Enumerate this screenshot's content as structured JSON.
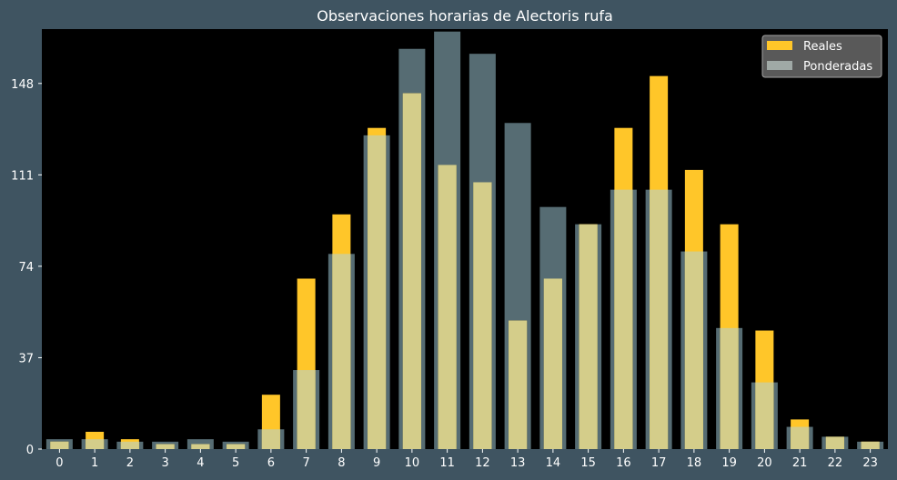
{
  "chart_data": {
    "type": "bar",
    "title": "Observaciones horarias de Alectoris rufa",
    "xlabel": "",
    "ylabel": "",
    "categories": [
      "0",
      "1",
      "2",
      "3",
      "4",
      "5",
      "6",
      "7",
      "8",
      "9",
      "10",
      "11",
      "12",
      "13",
      "14",
      "15",
      "16",
      "17",
      "18",
      "19",
      "20",
      "21",
      "22",
      "23"
    ],
    "yticks": [
      0,
      37,
      74,
      111,
      148
    ],
    "ylim": [
      0,
      170
    ],
    "grid": false,
    "legend_position": "top-right",
    "series": [
      {
        "name": "Reales",
        "color": "#ffc629",
        "values": [
          3,
          7,
          4,
          2,
          2,
          2,
          22,
          69,
          95,
          130,
          144,
          115,
          108,
          52,
          69,
          91,
          130,
          151,
          113,
          91,
          48,
          12,
          5,
          3
        ]
      },
      {
        "name": "Ponderadas",
        "color": "#a0a9a6",
        "values": [
          4,
          4,
          3,
          3,
          4,
          3,
          8,
          32,
          79,
          127,
          162,
          169,
          160,
          132,
          98,
          91,
          105,
          105,
          80,
          49,
          27,
          9,
          5,
          3
        ]
      }
    ]
  },
  "colors": {
    "page_background": "#3f5461",
    "plot_background": "#000000",
    "weighted_bar_dark": "#566c73",
    "weighted_bar_overlap": "#d4cd8a",
    "legend_background": "#595959",
    "legend_border": "#a3a3a3",
    "text": "#ffffff"
  }
}
